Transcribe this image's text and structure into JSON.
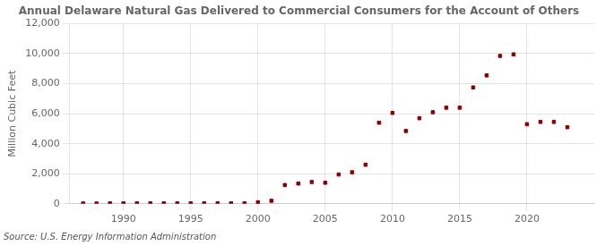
{
  "chart_data": {
    "type": "scatter",
    "title": "Annual Delaware Natural Gas Delivered to Commercial Consumers for the Account of Others",
    "ylabel": "Million Cubic Feet",
    "annotations": [
      "Source: U.S. Energy Information Administration"
    ],
    "x": [
      1987,
      1988,
      1989,
      1990,
      1991,
      1992,
      1993,
      1994,
      1995,
      1996,
      1997,
      1998,
      1999,
      2000,
      2001,
      2002,
      2003,
      2004,
      2005,
      2006,
      2007,
      2008,
      2009,
      2010,
      2011,
      2012,
      2013,
      2014,
      2015,
      2016,
      2017,
      2018,
      2019,
      2020,
      2021,
      2022,
      2023
    ],
    "values": [
      20,
      20,
      30,
      30,
      30,
      30,
      30,
      30,
      30,
      30,
      30,
      30,
      30,
      100,
      200,
      1250,
      1350,
      1450,
      1400,
      1950,
      2100,
      2600,
      5400,
      6050,
      4850,
      5700,
      6100,
      6400,
      6400,
      7750,
      8550,
      9850,
      9950,
      5300,
      5450,
      5450,
      5100
    ],
    "color": "#8b0000",
    "marker": "square",
    "xlim": [
      1986,
      2025
    ],
    "xticks": [
      1990,
      1995,
      2000,
      2005,
      2010,
      2015,
      2020
    ],
    "ylim": [
      0,
      12000
    ],
    "yticks": [
      0,
      {
        "value": 2000,
        "label": "2,000"
      },
      {
        "value": 4000,
        "label": "4,000"
      },
      {
        "value": 6000,
        "label": "6,000"
      },
      {
        "value": 8000,
        "label": "8,000"
      },
      {
        "value": 10000,
        "label": "10,000"
      },
      {
        "value": 12000,
        "label": "12,000"
      }
    ],
    "grid": true
  }
}
